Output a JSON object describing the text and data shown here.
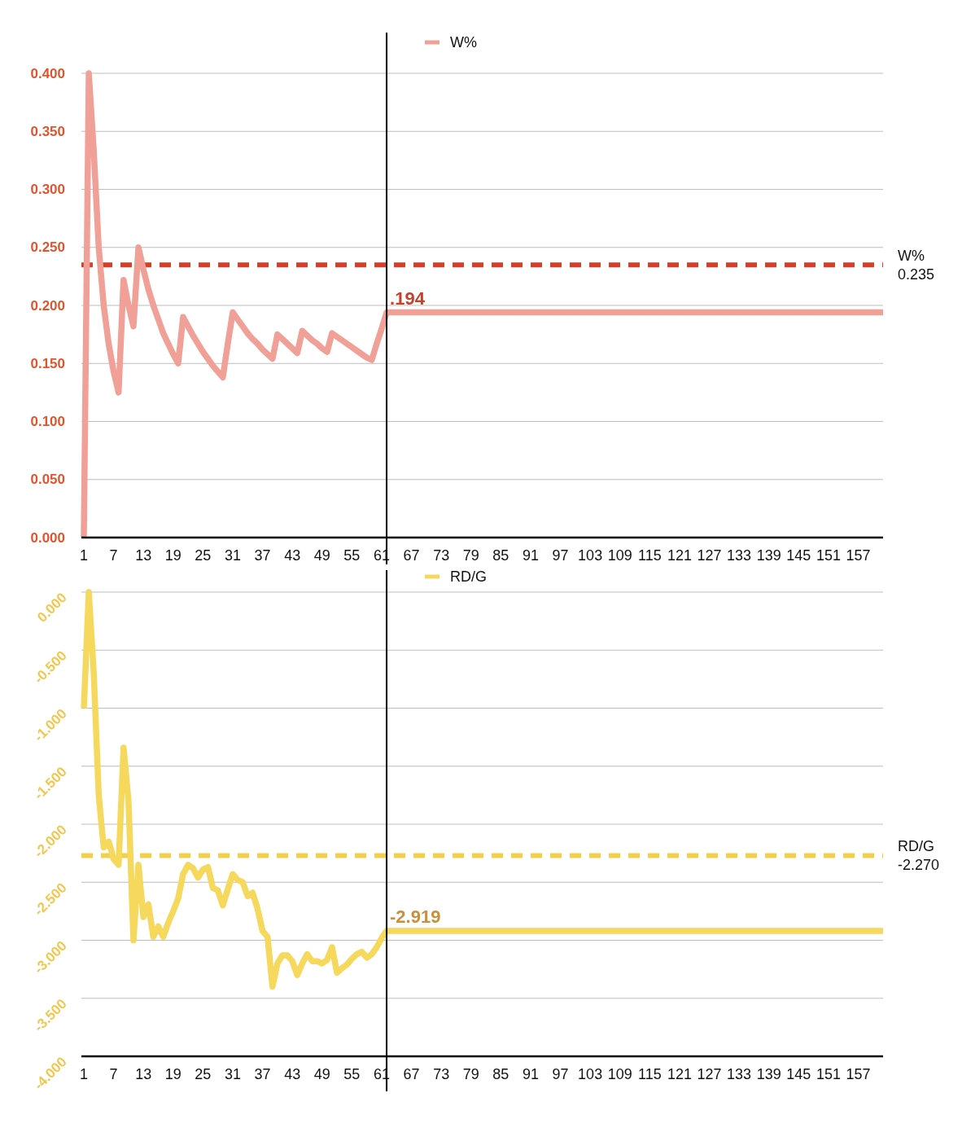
{
  "chart_data": [
    {
      "type": "line",
      "x": [
        1,
        2,
        3,
        4,
        5,
        6,
        7,
        8,
        9,
        10,
        11,
        12,
        13,
        14,
        15,
        16,
        17,
        18,
        19,
        20,
        21,
        22,
        23,
        24,
        25,
        26,
        27,
        28,
        29,
        30,
        31,
        32,
        33,
        34,
        35,
        36,
        37,
        38,
        39,
        40,
        41,
        42,
        43,
        44,
        45,
        46,
        47,
        48,
        49,
        50,
        51,
        52,
        53,
        54,
        55,
        56,
        57,
        58,
        59,
        60,
        61,
        62,
        162
      ],
      "series": [
        {
          "name": "W%",
          "color": "#f0a096",
          "values": [
            0,
            0.4,
            0.333,
            0.25,
            0.2,
            0.167,
            0.143,
            0.125,
            0.222,
            0.2,
            0.182,
            0.25,
            0.231,
            0.214,
            0.2,
            0.188,
            0.176,
            0.167,
            0.158,
            0.15,
            0.19,
            0.182,
            0.174,
            0.167,
            0.16,
            0.154,
            0.148,
            0.143,
            0.138,
            0.167,
            0.194,
            0.188,
            0.182,
            0.176,
            0.171,
            0.167,
            0.162,
            0.158,
            0.154,
            0.175,
            0.171,
            0.167,
            0.163,
            0.159,
            0.178,
            0.174,
            0.17,
            0.167,
            0.163,
            0.16,
            0.176,
            0.173,
            0.17,
            0.167,
            0.164,
            0.161,
            0.158,
            0.155,
            0.153,
            0.167,
            0.18,
            0.194,
            0.194
          ],
          "value_labels": [
            null,
            null,
            null,
            null,
            null,
            null,
            null,
            null,
            null,
            null,
            null,
            null,
            null,
            null,
            null,
            null,
            null,
            null,
            null,
            null,
            null,
            null,
            null,
            null,
            null,
            null,
            null,
            null,
            null,
            null,
            null,
            null,
            null,
            null,
            null,
            null,
            null,
            null,
            null,
            null,
            null,
            null,
            null,
            null,
            null,
            null,
            null,
            null,
            null,
            null,
            null,
            null,
            null,
            null,
            null,
            null,
            null,
            null,
            null,
            null,
            null,
            ".194",
            null
          ]
        }
      ],
      "xlim": [
        1,
        162
      ],
      "xticks": [
        1,
        7,
        13,
        19,
        25,
        31,
        37,
        43,
        49,
        55,
        61,
        67,
        73,
        79,
        85,
        91,
        97,
        103,
        109,
        115,
        121,
        127,
        133,
        139,
        145,
        151,
        157
      ],
      "ylim": [
        0,
        0.4
      ],
      "yticks": [
        {
          "value": 0,
          "label": "0.000"
        },
        {
          "value": 0.05,
          "label": "0.050"
        },
        {
          "value": 0.1,
          "label": "0.100"
        },
        {
          "value": 0.15,
          "label": "0.150"
        },
        {
          "value": 0.2,
          "label": "0.200"
        },
        {
          "value": 0.25,
          "label": "0.250"
        },
        {
          "value": 0.3,
          "label": "0.300"
        },
        {
          "value": 0.35,
          "label": "0.350"
        },
        {
          "value": 0.4,
          "label": "0.400"
        }
      ],
      "grid": "y",
      "legend": "top",
      "ref_lines": [
        {
          "axis": "y",
          "value": 0.235,
          "label": "W% 0.235",
          "color": "#d0402a",
          "line_style": "dashed"
        },
        {
          "axis": "x",
          "value": 62,
          "color": "#000000",
          "line_style": "solid"
        }
      ]
    },
    {
      "type": "line",
      "x": [
        1,
        2,
        3,
        4,
        5,
        6,
        7,
        8,
        9,
        10,
        11,
        12,
        13,
        14,
        15,
        16,
        17,
        18,
        19,
        20,
        21,
        22,
        23,
        24,
        25,
        26,
        27,
        28,
        29,
        30,
        31,
        32,
        33,
        34,
        35,
        36,
        37,
        38,
        39,
        40,
        41,
        42,
        43,
        44,
        45,
        46,
        47,
        48,
        49,
        50,
        51,
        52,
        53,
        54,
        55,
        56,
        57,
        58,
        59,
        60,
        61,
        62,
        162
      ],
      "series": [
        {
          "name": "RD/G",
          "color": "#f5d85c",
          "values": [
            -1,
            0,
            -0.7,
            -1.75,
            -2.2,
            -2.15,
            -2.3,
            -2.35,
            -1.34,
            -1.8,
            -3,
            -2.35,
            -2.8,
            -2.69,
            -2.97,
            -2.88,
            -2.97,
            -2.85,
            -2.75,
            -2.64,
            -2.43,
            -2.35,
            -2.38,
            -2.46,
            -2.39,
            -2.37,
            -2.55,
            -2.57,
            -2.7,
            -2.56,
            -2.43,
            -2.48,
            -2.5,
            -2.62,
            -2.59,
            -2.73,
            -2.92,
            -2.97,
            -3.4,
            -3.2,
            -3.13,
            -3.13,
            -3.18,
            -3.3,
            -3.2,
            -3.12,
            -3.18,
            -3.18,
            -3.2,
            -3.17,
            -3.06,
            -3.28,
            -3.24,
            -3.21,
            -3.16,
            -3.12,
            -3.1,
            -3.15,
            -3.12,
            -3.06,
            -2.98,
            -2.919,
            -2.919
          ],
          "value_labels": [
            null,
            null,
            null,
            null,
            null,
            null,
            null,
            null,
            null,
            null,
            null,
            null,
            null,
            null,
            null,
            null,
            null,
            null,
            null,
            null,
            null,
            null,
            null,
            null,
            null,
            null,
            null,
            null,
            null,
            null,
            null,
            null,
            null,
            null,
            null,
            null,
            null,
            null,
            null,
            null,
            null,
            null,
            null,
            null,
            null,
            null,
            null,
            null,
            null,
            null,
            null,
            null,
            null,
            null,
            null,
            null,
            null,
            null,
            null,
            null,
            null,
            "-2.919",
            null
          ]
        }
      ],
      "xlim": [
        1,
        162
      ],
      "xticks": [
        1,
        7,
        13,
        19,
        25,
        31,
        37,
        43,
        49,
        55,
        61,
        67,
        73,
        79,
        85,
        91,
        97,
        103,
        109,
        115,
        121,
        127,
        133,
        139,
        145,
        151,
        157
      ],
      "ylim": [
        -4,
        0
      ],
      "yticks": [
        {
          "value": -4,
          "label": "-4.000"
        },
        {
          "value": -3.5,
          "label": "-3.500"
        },
        {
          "value": -3,
          "label": "-3.000"
        },
        {
          "value": -2.5,
          "label": "-2.500"
        },
        {
          "value": -2,
          "label": "-2.000"
        },
        {
          "value": -1.5,
          "label": "-1.500"
        },
        {
          "value": -1,
          "label": "-1.000"
        },
        {
          "value": -0.5,
          "label": "-0.500"
        },
        {
          "value": 0,
          "label": "0.000"
        }
      ],
      "grid": "y",
      "legend": "top",
      "ref_lines": [
        {
          "axis": "y",
          "value": -2.27,
          "label": "RD/G -2.270",
          "color": "#f2d04f",
          "line_style": "dashed"
        },
        {
          "axis": "x",
          "value": 62,
          "color": "#000000",
          "line_style": "solid"
        }
      ]
    }
  ]
}
